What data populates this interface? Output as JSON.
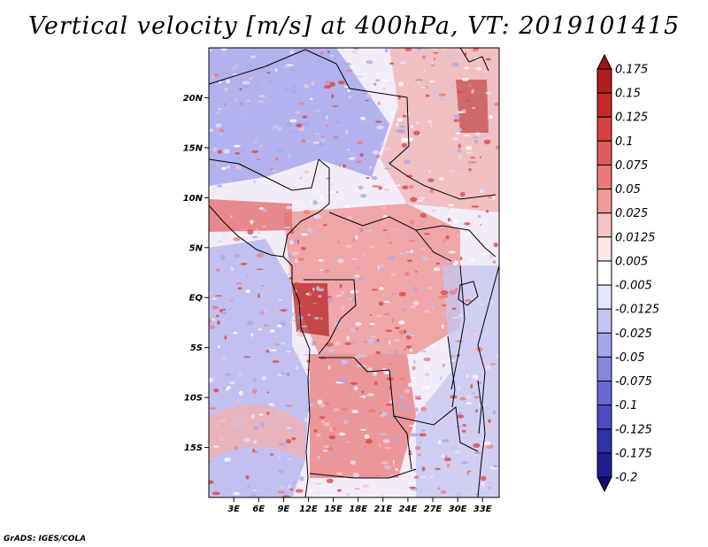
{
  "title": "Vertical velocity [m/s] at 400hPa, VT: 2019101415",
  "credit": "GrADS: IGES/COLA",
  "lat_ticks": [
    {
      "value": 20,
      "label": "20N"
    },
    {
      "value": 15,
      "label": "15N"
    },
    {
      "value": 10,
      "label": "10N"
    },
    {
      "value": 5,
      "label": "5N"
    },
    {
      "value": 0,
      "label": "EQ"
    },
    {
      "value": -5,
      "label": "5S"
    },
    {
      "value": -10,
      "label": "10S"
    },
    {
      "value": -15,
      "label": "15S"
    }
  ],
  "lon_ticks": [
    {
      "value": 3,
      "label": "3E"
    },
    {
      "value": 6,
      "label": "6E"
    },
    {
      "value": 9,
      "label": "9E"
    },
    {
      "value": 12,
      "label": "12E"
    },
    {
      "value": 15,
      "label": "15E"
    },
    {
      "value": 18,
      "label": "18E"
    },
    {
      "value": 21,
      "label": "21E"
    },
    {
      "value": 24,
      "label": "24E"
    },
    {
      "value": 27,
      "label": "27E"
    },
    {
      "value": 30,
      "label": "30E"
    },
    {
      "value": 33,
      "label": "33E"
    }
  ],
  "extent": {
    "lon_min": 0,
    "lon_max": 35,
    "lat_min": -20,
    "lat_max": 25
  },
  "colorbar": {
    "levels": [
      "0.175",
      "0.15",
      "0.125",
      "0.1",
      "0.075",
      "0.05",
      "0.025",
      "0.0125",
      "0.005",
      "-0.005",
      "-0.0125",
      "-0.025",
      "-0.05",
      "-0.075",
      "-0.1",
      "-0.125",
      "-0.175",
      "-0.2"
    ],
    "colors": [
      "#a11414",
      "#b41c1c",
      "#c82828",
      "#d94040",
      "#e35a5a",
      "#ec7a7a",
      "#f29a9a",
      "#f8c2c2",
      "#fde6e6",
      "#ffffff",
      "#e4e4fb",
      "#c4c4f4",
      "#a6a6ec",
      "#8686e0",
      "#6868d2",
      "#4c4cc2",
      "#3030aa",
      "#1e1e90",
      "#0e0e70"
    ]
  },
  "field_regions": [
    {
      "name": "sahara-north-west",
      "tendency": "negative"
    },
    {
      "name": "gulf-of-guinea-ocean",
      "tendency": "negative"
    },
    {
      "name": "congo-basin",
      "tendency": "positive"
    },
    {
      "name": "angola-plateau",
      "tendency": "positive"
    },
    {
      "name": "south-atlantic",
      "tendency": "negative"
    },
    {
      "name": "sudan-northeast",
      "tendency": "positive"
    }
  ]
}
